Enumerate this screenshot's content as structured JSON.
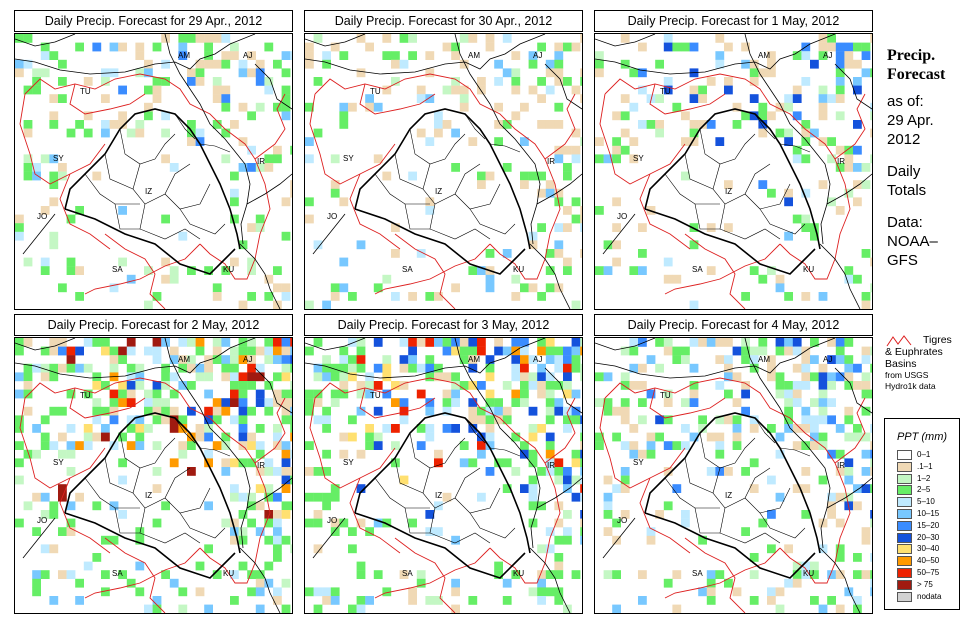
{
  "panels": [
    {
      "title": "Daily Precip. Forecast for  29 Apr., 2012"
    },
    {
      "title": "Daily Precip. Forecast for  30 Apr., 2012"
    },
    {
      "title": "Daily Precip. Forecast for  1 May, 2012"
    },
    {
      "title": "Daily Precip. Forecast for  2 May, 2012"
    },
    {
      "title": "Daily Precip. Forecast for  3 May, 2012"
    },
    {
      "title": "Daily Precip. Forecast for  4 May, 2012"
    }
  ],
  "country_labels": [
    "AM",
    "AJ",
    "TU",
    "SY",
    "IR",
    "IZ",
    "JO",
    "SA",
    "KU"
  ],
  "sidebar": {
    "title_line1": "Precip.",
    "title_line2": "Forecast",
    "asof_line1": "as of:",
    "asof_line2": "29 Apr.",
    "asof_line3": "2012",
    "totals_line1": "Daily",
    "totals_line2": "Totals",
    "data_line1": "Data:",
    "data_line2": "NOAA–",
    "data_line3": "GFS"
  },
  "basin_legend": {
    "line1": "Tigres",
    "line2": "& Euphrates",
    "line3": "Basins",
    "line4": "from USGS",
    "line5": "Hydro1k data",
    "color": "#dd2020"
  },
  "legend": {
    "title": "PPT (mm)",
    "classes": [
      {
        "label": "0–1",
        "color": "#ffffff"
      },
      {
        "label": ".1–1",
        "color": "#f0d9b5"
      },
      {
        "label": "1–2",
        "color": "#c4f7c4"
      },
      {
        "label": "2–5",
        "color": "#66ee66"
      },
      {
        "label": "5–10",
        "color": "#bfeaff"
      },
      {
        "label": "10–15",
        "color": "#78c8ff"
      },
      {
        "label": "15–20",
        "color": "#3a8cff"
      },
      {
        "label": "20–30",
        "color": "#1452dc"
      },
      {
        "label": "30–40",
        "color": "#ffe070"
      },
      {
        "label": "40–50",
        "color": "#ff9a00"
      },
      {
        "label": "50–75",
        "color": "#ee2200"
      },
      {
        "label": "> 75",
        "color": "#a01a10"
      },
      {
        "label": "nodata",
        "color": "#d2d2d2"
      }
    ]
  }
}
